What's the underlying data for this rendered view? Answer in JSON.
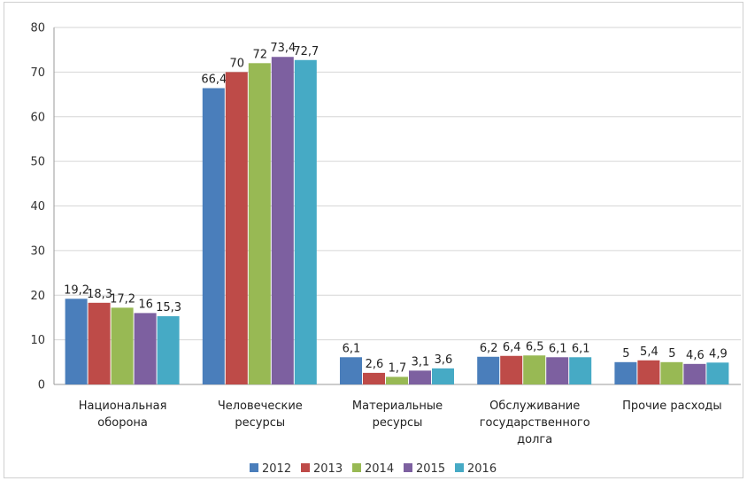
{
  "chart_data": {
    "type": "bar",
    "title": "",
    "xlabel": "",
    "ylabel": "",
    "ylim": [
      0,
      80
    ],
    "yticks": [
      0,
      10,
      20,
      30,
      40,
      50,
      60,
      70,
      80
    ],
    "grid": true,
    "legend_position": "bottom",
    "categories": [
      [
        "Национальная",
        "оборона"
      ],
      [
        "Человеческие",
        "ресурсы"
      ],
      [
        "Материальные",
        "ресурсы"
      ],
      [
        "Обслуживание",
        "государственного",
        "долга"
      ],
      [
        "Прочие расходы"
      ]
    ],
    "series": [
      {
        "name": "2012",
        "color": "#4a7ebb",
        "values": [
          19.2,
          66.4,
          6.1,
          6.2,
          5.0
        ],
        "labels": [
          "19,2",
          "66,4",
          "6,1",
          "6,2",
          "5"
        ]
      },
      {
        "name": "2013",
        "color": "#be4b48",
        "values": [
          18.3,
          70.0,
          2.6,
          6.4,
          5.4
        ],
        "labels": [
          "18,3",
          "70",
          "2,6",
          "6,4",
          "5,4"
        ]
      },
      {
        "name": "2014",
        "color": "#98b954",
        "values": [
          17.2,
          72.0,
          1.7,
          6.5,
          5.0
        ],
        "labels": [
          "17,2",
          "72",
          "1,7",
          "6,5",
          "5"
        ]
      },
      {
        "name": "2015",
        "color": "#7d60a0",
        "values": [
          16.0,
          73.4,
          3.1,
          6.1,
          4.6
        ],
        "labels": [
          "16",
          "73,4",
          "3,1",
          "6,1",
          "4,6"
        ]
      },
      {
        "name": "2016",
        "color": "#46aac5",
        "values": [
          15.3,
          72.7,
          3.6,
          6.1,
          4.9
        ],
        "labels": [
          "15,3",
          "72,7",
          "3,6",
          "6,1",
          "4,9"
        ]
      }
    ]
  }
}
